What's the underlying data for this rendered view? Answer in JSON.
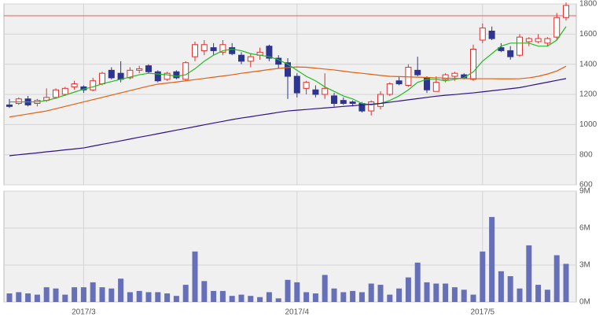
{
  "chart_data": [
    {
      "type": "candlestick",
      "open": [
        1130,
        1140,
        1170,
        1140,
        1160,
        1180,
        1200,
        1250,
        1250,
        1230,
        1270,
        1360,
        1340,
        1310,
        1360,
        1390,
        1350,
        1300,
        1350,
        1300,
        1450,
        1490,
        1510,
        1480,
        1510,
        1460,
        1420,
        1460,
        1520,
        1440,
        1410,
        1320,
        1240,
        1230,
        1200,
        1190,
        1160,
        1150,
        1140,
        1090,
        1120,
        1200,
        1290,
        1260,
        1360,
        1310,
        1220,
        1300,
        1320,
        1330,
        1300,
        1560,
        1620,
        1510,
        1490,
        1460,
        1550,
        1550,
        1540,
        1580,
        1710
      ],
      "high": [
        1170,
        1180,
        1190,
        1170,
        1240,
        1240,
        1250,
        1290,
        1260,
        1310,
        1350,
        1380,
        1420,
        1380,
        1390,
        1400,
        1360,
        1350,
        1360,
        1420,
        1550,
        1560,
        1540,
        1560,
        1540,
        1480,
        1470,
        1510,
        1530,
        1460,
        1440,
        1340,
        1290,
        1260,
        1340,
        1210,
        1180,
        1160,
        1150,
        1160,
        1220,
        1280,
        1320,
        1400,
        1450,
        1320,
        1320,
        1340,
        1350,
        1340,
        1530,
        1670,
        1650,
        1540,
        1520,
        1600,
        1580,
        1600,
        1580,
        1740,
        1810
      ],
      "low": [
        1110,
        1130,
        1120,
        1120,
        1150,
        1170,
        1190,
        1230,
        1210,
        1220,
        1260,
        1300,
        1280,
        1300,
        1340,
        1340,
        1280,
        1290,
        1300,
        1290,
        1420,
        1460,
        1460,
        1460,
        1460,
        1400,
        1380,
        1430,
        1420,
        1370,
        1170,
        1180,
        1200,
        1180,
        1170,
        1120,
        1130,
        1120,
        1080,
        1060,
        1100,
        1190,
        1260,
        1250,
        1320,
        1210,
        1220,
        1280,
        1290,
        1300,
        1290,
        1540,
        1560,
        1480,
        1430,
        1450,
        1520,
        1540,
        1520,
        1560,
        1690
      ],
      "close": [
        1120,
        1170,
        1130,
        1160,
        1180,
        1230,
        1240,
        1270,
        1230,
        1290,
        1340,
        1310,
        1300,
        1360,
        1370,
        1350,
        1290,
        1340,
        1310,
        1410,
        1530,
        1530,
        1490,
        1530,
        1470,
        1420,
        1450,
        1480,
        1440,
        1400,
        1320,
        1210,
        1280,
        1200,
        1240,
        1140,
        1140,
        1140,
        1090,
        1150,
        1200,
        1270,
        1270,
        1380,
        1330,
        1230,
        1280,
        1330,
        1340,
        1310,
        1500,
        1640,
        1570,
        1490,
        1450,
        1580,
        1570,
        1570,
        1570,
        1710,
        1790
      ],
      "up_color": "#e03030",
      "down_color": "#2e3590",
      "lines": [
        {
          "color": "#22bb22",
          "values": [
            1150,
            1150,
            1150,
            1150,
            1160,
            1175,
            1195,
            1215,
            1235,
            1250,
            1270,
            1285,
            1300,
            1315,
            1330,
            1340,
            1335,
            1330,
            1320,
            1330,
            1370,
            1420,
            1460,
            1490,
            1500,
            1490,
            1470,
            1460,
            1450,
            1430,
            1400,
            1360,
            1320,
            1290,
            1250,
            1220,
            1190,
            1170,
            1140,
            1130,
            1140,
            1160,
            1190,
            1230,
            1280,
            1300,
            1300,
            1290,
            1300,
            1310,
            1350,
            1420,
            1470,
            1520,
            1540,
            1540,
            1540,
            1520,
            1520,
            1560,
            1650
          ]
        },
        {
          "color": "#e06010",
          "values": [
            1050,
            1060,
            1070,
            1080,
            1090,
            1105,
            1120,
            1135,
            1150,
            1165,
            1180,
            1195,
            1210,
            1225,
            1240,
            1255,
            1268,
            1275,
            1282,
            1290,
            1298,
            1306,
            1314,
            1322,
            1330,
            1340,
            1348,
            1356,
            1365,
            1372,
            1378,
            1382,
            1380,
            1374,
            1368,
            1362,
            1354,
            1346,
            1340,
            1333,
            1326,
            1320,
            1318,
            1316,
            1314,
            1312,
            1310,
            1308,
            1306,
            1305,
            1304,
            1304,
            1304,
            1303,
            1303,
            1304,
            1310,
            1320,
            1335,
            1355,
            1387
          ]
        },
        {
          "color": "#30108a",
          "values": [
            793,
            800,
            806,
            812,
            819,
            825,
            832,
            838,
            845,
            857,
            869,
            880,
            892,
            904,
            916,
            927,
            939,
            951,
            963,
            974,
            986,
            998,
            1010,
            1021,
            1033,
            1043,
            1052,
            1062,
            1071,
            1081,
            1090,
            1095,
            1100,
            1105,
            1110,
            1115,
            1120,
            1125,
            1130,
            1135,
            1140,
            1148,
            1156,
            1164,
            1172,
            1180,
            1188,
            1194,
            1199,
            1205,
            1210,
            1217,
            1224,
            1231,
            1238,
            1245,
            1257,
            1269,
            1281,
            1293,
            1305
          ]
        }
      ],
      "hline": {
        "value": 1722,
        "color": "#e06060"
      },
      "ylim": [
        600,
        1800
      ],
      "yticks": [
        600,
        800,
        1000,
        1200,
        1400,
        1600,
        1800
      ],
      "grid": true
    },
    {
      "type": "bar",
      "categories": [
        null,
        null,
        null,
        null,
        null,
        null,
        null,
        null,
        "2017/3",
        null,
        null,
        null,
        null,
        null,
        null,
        null,
        null,
        null,
        null,
        null,
        null,
        null,
        null,
        null,
        null,
        null,
        null,
        null,
        null,
        null,
        null,
        "2017/4",
        null,
        null,
        null,
        null,
        null,
        null,
        null,
        null,
        null,
        null,
        null,
        null,
        null,
        null,
        null,
        null,
        null,
        null,
        null,
        "2017/5",
        null,
        null,
        null,
        null,
        null,
        null,
        null,
        null,
        null
      ],
      "values": [
        700000,
        800000,
        700000,
        600000,
        1200000,
        1100000,
        600000,
        1200000,
        1200000,
        1600000,
        1200000,
        1100000,
        1900000,
        800000,
        900000,
        800000,
        800000,
        700000,
        500000,
        1400000,
        4100000,
        1700000,
        900000,
        900000,
        500000,
        600000,
        500000,
        400000,
        800000,
        300000,
        1800000,
        1600000,
        800000,
        700000,
        2200000,
        1100000,
        800000,
        900000,
        800000,
        1500000,
        1400000,
        600000,
        1100000,
        2000000,
        3200000,
        1600000,
        1500000,
        1500000,
        1200000,
        1000000,
        600000,
        4100000,
        6900000,
        2500000,
        2100000,
        1100000,
        4600000,
        1400000,
        1000000,
        3800000,
        3100000
      ],
      "color": "#6670b8",
      "ylim": [
        0,
        9000000
      ],
      "yticks": [
        {
          "value": 0,
          "label": "0M"
        },
        {
          "value": 3000000,
          "label": "3M"
        },
        {
          "value": 6000000,
          "label": "6M"
        },
        {
          "value": 9000000,
          "label": "9M"
        }
      ],
      "grid": true
    }
  ]
}
